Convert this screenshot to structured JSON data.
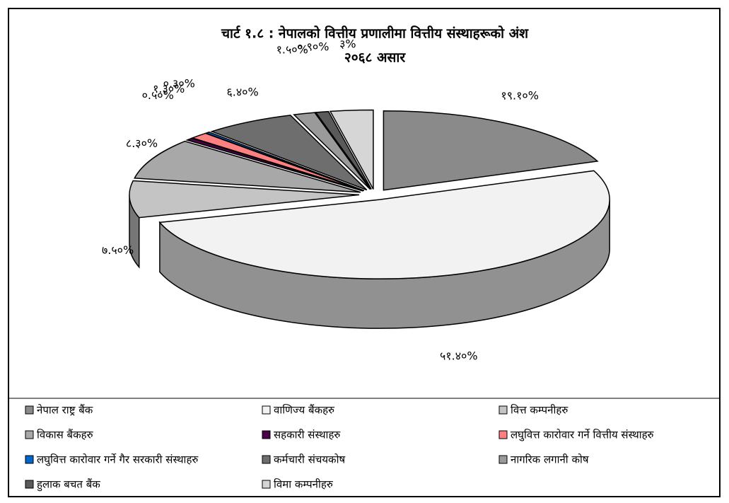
{
  "chart_data": {
    "type": "pie3d",
    "title": "चार्ट १.८ : नेपालको वित्तीय प्रणालीमा वित्तीय संस्थाहरूको अंश",
    "subtitle": "२०६८ असार",
    "categories": [
      "नेपाल राष्ट्र बैंक",
      "वाणिज्य बैंकहरु",
      "वित्त कम्पनीहरु",
      "विकास बैंकहरु",
      "सहकारी संस्थाहरु",
      "लघुवित्त कारोवार गर्ने वित्तीय संस्थाहरु",
      "लघुवित्त कारोवार गर्ने गैर सरकारी संस्थाहरु",
      "कर्मचारी संचयकोष",
      "नागरिक लगानी कोष",
      "हुलाक बचत बैंक",
      "विमा कम्पनीहरु"
    ],
    "values": [
      19.1,
      51.4,
      7.5,
      8.3,
      0.5,
      1.3,
      0.3,
      6.4,
      1.5,
      0.9,
      3
    ],
    "value_labels": [
      "१९.१०%",
      "५१.४०%",
      "७.५०%",
      "८.३०%",
      "०.५०%",
      "१.३०%",
      "०.३०%",
      "६.४०%",
      "१.५०%",
      "०.९०%",
      "३%"
    ],
    "colors": [
      "#8a8a8a",
      "#f2f2f2",
      "#c4c4c4",
      "#a8a8a8",
      "#4a0046",
      "#ff8080",
      "#0066cc",
      "#6e6e6e",
      "#9a9a9a",
      "#5a5a5a",
      "#d6d6d6"
    ]
  }
}
